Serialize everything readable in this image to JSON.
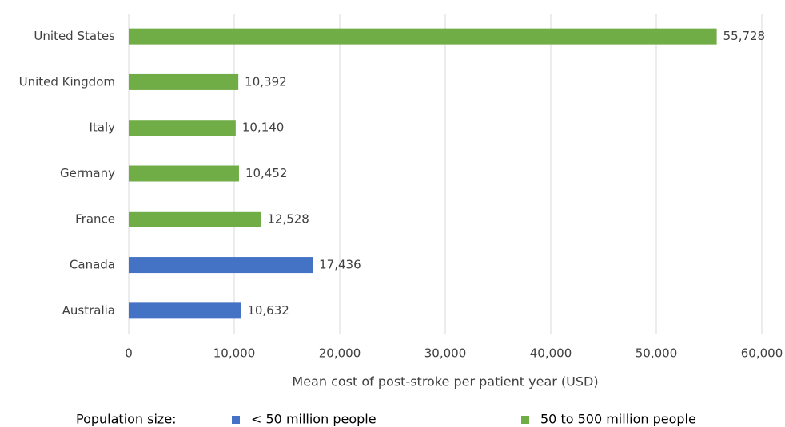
{
  "chart_data": {
    "type": "hbar",
    "xlabel": "Mean cost of post-stroke per patient year (USD)",
    "categories": [
      "United States",
      "United Kingdom",
      "Italy",
      "Germany",
      "France",
      "Canada",
      "Australia"
    ],
    "series": [
      {
        "name": "< 50 million people",
        "color": "#4472c4",
        "values": [
          null,
          null,
          null,
          null,
          null,
          17436,
          10632
        ],
        "value_labels": [
          null,
          null,
          null,
          null,
          null,
          "17,436",
          "10,632"
        ]
      },
      {
        "name": "50 to 500 million people",
        "color": "#70ad47",
        "values": [
          55728,
          10392,
          10140,
          10452,
          12528,
          null,
          null
        ],
        "value_labels": [
          "55,728",
          "10,392",
          "10,140",
          "10,452",
          "12,528",
          null,
          null
        ]
      }
    ],
    "xlim": [
      0,
      60000
    ],
    "xticks": [
      0,
      {
        "value": 10000,
        "label": "10,000"
      },
      {
        "value": 20000,
        "label": "20,000"
      },
      {
        "value": 30000,
        "label": "30,000"
      },
      {
        "value": 40000,
        "label": "40,000"
      },
      {
        "value": 50000,
        "label": "50,000"
      },
      {
        "value": 60000,
        "label": "60,000"
      }
    ],
    "grid": true,
    "legend_title": "Population size:",
    "legend_position": "bottom"
  }
}
